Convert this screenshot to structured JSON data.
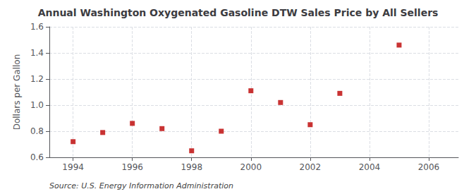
{
  "chart_data": {
    "type": "scatter",
    "title": "Annual Washington Oxygenated Gasoline DTW Sales Price by All Sellers",
    "ylabel": "Dollars per Gallon",
    "source": "Source: U.S. Energy Information Administration",
    "x": [
      1994,
      1995,
      1996,
      1997,
      1998,
      1999,
      2000,
      2001,
      2002,
      2003,
      2005
    ],
    "values": [
      0.72,
      0.79,
      0.86,
      0.82,
      0.65,
      0.8,
      1.11,
      1.02,
      0.85,
      1.09,
      1.46
    ],
    "xlim": [
      1993.2,
      2007.0
    ],
    "ylim": [
      0.6,
      1.6
    ],
    "xticks": [
      1994,
      1996,
      1998,
      2000,
      2002,
      2004,
      2006
    ],
    "yticks": [
      0.6,
      0.8,
      {
        "value": 1.0,
        "label": "1.0"
      },
      1.2,
      1.4,
      1.6
    ],
    "color": "#bb0000",
    "marker": "square",
    "grid": true
  }
}
